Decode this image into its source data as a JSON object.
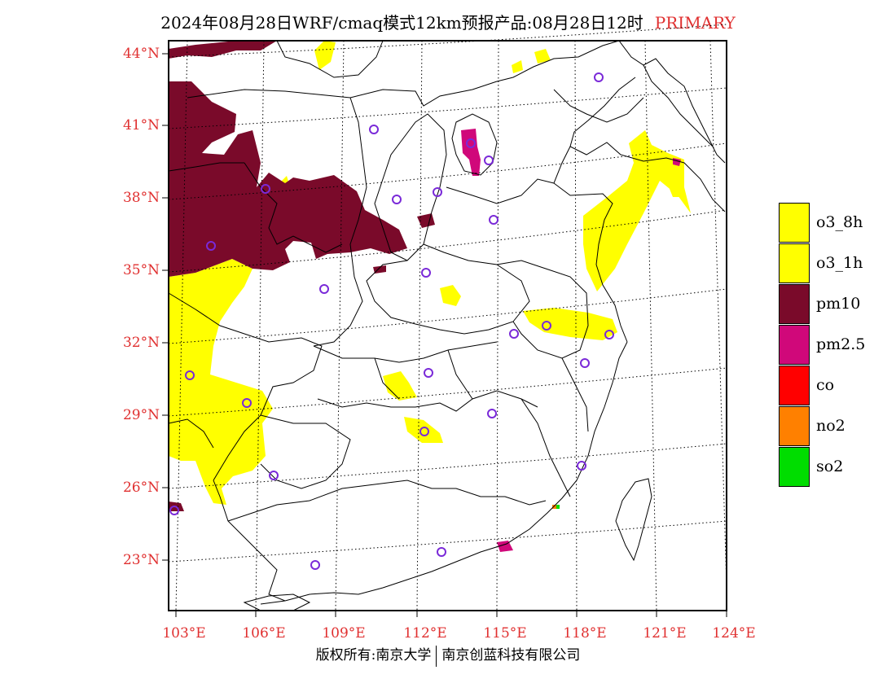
{
  "title": {
    "main": "2024年08月28日WRF/cmaq模式12km预报产品:08月28日12时",
    "tag": "PRIMARY"
  },
  "axes": {
    "lat_labels": [
      "44°N",
      "41°N",
      "38°N",
      "35°N",
      "32°N",
      "29°N",
      "26°N",
      "23°N"
    ],
    "lon_labels": [
      "103°E",
      "106°E",
      "109°E",
      "112°E",
      "115°E",
      "118°E",
      "121°E",
      "124°E"
    ]
  },
  "legend": {
    "items": [
      {
        "label": "o3_8h",
        "color": "#ffff00"
      },
      {
        "label": "o3_1h",
        "color": "#ffff00"
      },
      {
        "label": "pm10",
        "color": "#7a0a2a"
      },
      {
        "label": "pm2.5",
        "color": "#d0087a"
      },
      {
        "label": "co",
        "color": "#ff0000"
      },
      {
        "label": "no2",
        "color": "#ff8000"
      },
      {
        "label": "so2",
        "color": "#00dd00"
      }
    ]
  },
  "footer": {
    "left": "版权所有:南京大学",
    "right": "南京创蓝科技有限公司"
  }
}
